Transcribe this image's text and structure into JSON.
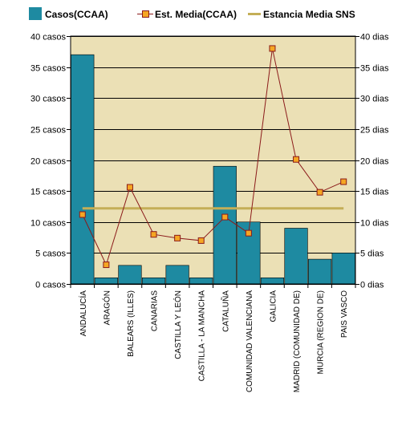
{
  "colors": {
    "plot_bg": "#ebe0b5",
    "bar": "#1e8aa1",
    "line": "#8b1a1a",
    "marker": "#f5a623",
    "ref_line": "#c4ae57",
    "grid": "#000000"
  },
  "legend": {
    "bars": "Casos(CCAA)",
    "line": "Est. Media(CCAA)",
    "ref": "Estancia Media SNS"
  },
  "chart_data": {
    "type": "bar",
    "categories": [
      "ANDALUCÍA",
      "ARAGÓN",
      "BALEARS (ILLES)",
      "CANARIAS",
      "CASTILLA Y LEÓN",
      "CASTILLA - LA MANCHA",
      "CATALUÑA",
      "COMUNIDAD VALENCIANA",
      "GALICIA",
      "MADRID (COMUNIDAD DE)",
      "MURCIA (REGION DE)",
      "PAIS VASCO"
    ],
    "series": [
      {
        "name": "Casos(CCAA)",
        "type": "bar",
        "axis": "left",
        "values": [
          37,
          1,
          3,
          1,
          3,
          1,
          19,
          10,
          1,
          9,
          4,
          5
        ]
      },
      {
        "name": "Est. Media(CCAA)",
        "type": "line",
        "axis": "right",
        "values": [
          11.2,
          3.1,
          15.6,
          8.0,
          7.4,
          7.0,
          10.8,
          8.2,
          38.0,
          20.1,
          14.8,
          16.5
        ]
      },
      {
        "name": "Estancia Media SNS",
        "type": "reference",
        "axis": "right",
        "value": 12.2
      }
    ],
    "y_left": {
      "min": 0,
      "max": 40,
      "step": 5,
      "tick_labels": [
        "0 casos",
        "5 casos",
        "10 casos",
        "15 casos",
        "20 casos",
        "25 casos",
        "30 casos",
        "35 casos",
        "40 casos"
      ]
    },
    "y_right": {
      "min": 0,
      "max": 40,
      "step": 5,
      "tick_labels": [
        "0 dias",
        "5 dias",
        "10 dias",
        "15 dias",
        "20 dias",
        "25 dias",
        "30 dias",
        "35 dias",
        "40 dias"
      ]
    },
    "grid": true,
    "legend_position": "top"
  }
}
